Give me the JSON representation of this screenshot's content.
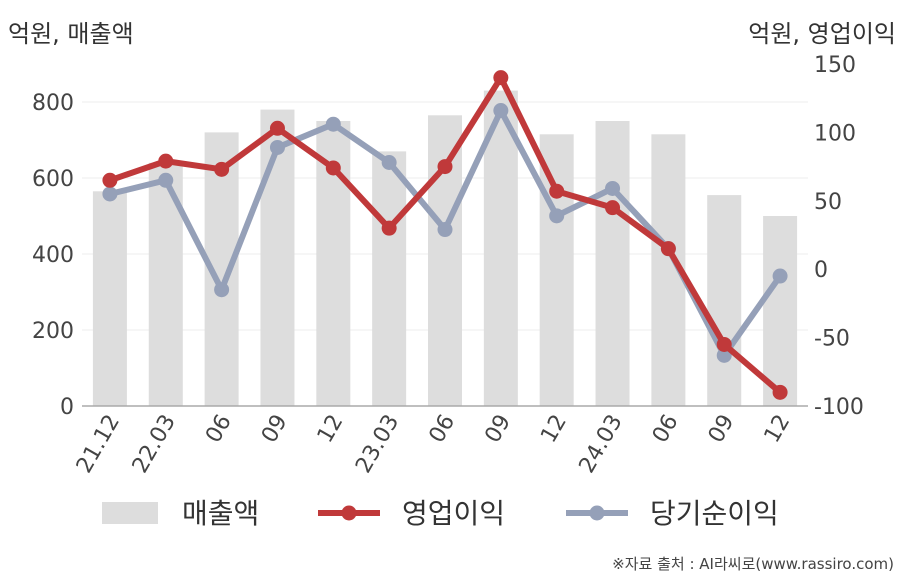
{
  "units": {
    "left": "억원, 매출액",
    "right": "억원, 영업이익"
  },
  "source": "※자료 출처 : AI라씨로(www.rassiro.com)",
  "chart_data": {
    "type": "bar+line",
    "categories": [
      "21.12",
      "22.03",
      "06",
      "09",
      "12",
      "23.03",
      "06",
      "09",
      "12",
      "24.03",
      "06",
      "09",
      "12"
    ],
    "left_axis": {
      "min": 0,
      "max": 900,
      "ticks": [
        0,
        200,
        400,
        600,
        800
      ]
    },
    "right_axis": {
      "min": -100,
      "max": 150,
      "ticks": [
        -100,
        -50,
        0,
        50,
        100,
        150
      ]
    },
    "series": [
      {
        "name": "매출액",
        "kind": "bar",
        "axis": "left",
        "color": "#dddddd",
        "values": [
          565,
          640,
          720,
          780,
          750,
          670,
          765,
          830,
          715,
          750,
          715,
          555,
          500
        ]
      },
      {
        "name": "영업이익",
        "kind": "line",
        "axis": "right",
        "color": "#c0393a",
        "values": [
          65,
          79,
          73,
          103,
          74,
          30,
          75,
          140,
          57,
          45,
          15,
          -55,
          -90
        ]
      },
      {
        "name": "당기순이익",
        "kind": "line",
        "axis": "right",
        "color": "#95a0b8",
        "values": [
          55,
          65,
          -15,
          89,
          106,
          78,
          29,
          116,
          39,
          59,
          15,
          -63,
          -5
        ]
      }
    ],
    "legend_position": "bottom",
    "grid": true
  }
}
